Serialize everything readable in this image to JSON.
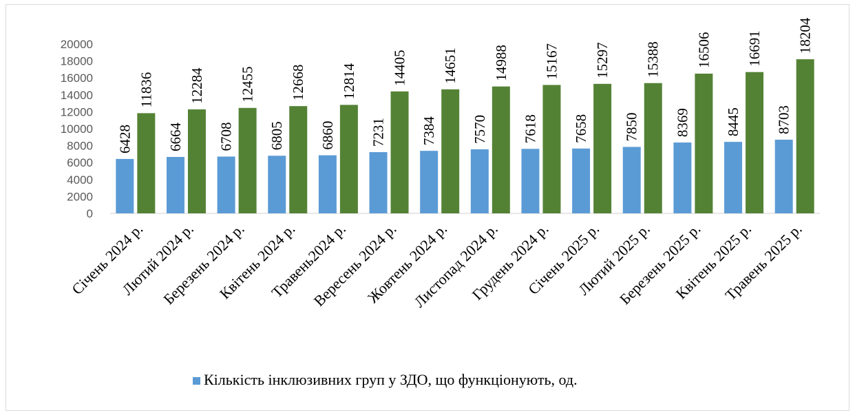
{
  "chart_data": {
    "type": "bar",
    "title": "",
    "xlabel": "",
    "ylabel": "",
    "ylim": [
      0,
      20000
    ],
    "yticks": [
      0,
      2000,
      4000,
      6000,
      8000,
      10000,
      12000,
      14000,
      16000,
      18000,
      20000
    ],
    "grid": false,
    "legend_position": "bottom",
    "categories": [
      "Січень 2024 р.",
      "Лютий 2024 р.",
      "Березень 2024 р.",
      "Квітень 2024 р.",
      "Травень2024 р.",
      "Вересень 2024 р.",
      "Жовтень 2024 р.",
      "Листопад 2024 р.",
      "Грудень 2024 р.",
      "Січень 2025 р.",
      "Лютий 2025 р.",
      "Березень 2025 р.",
      "Квітень 2025 р.",
      "Травень 2025 р."
    ],
    "series": [
      {
        "name": "Кількість інклюзивних груп у ЗДО, що  функціонують, од.",
        "color": "#5b9bd5",
        "values": [
          6428,
          6664,
          6708,
          6805,
          6860,
          7231,
          7384,
          7570,
          7618,
          7658,
          7850,
          8369,
          8445,
          8703
        ]
      },
      {
        "name": "",
        "color": "#548235",
        "values": [
          11836,
          12284,
          12455,
          12668,
          12814,
          14405,
          14651,
          14988,
          15167,
          15297,
          15388,
          16506,
          16691,
          18204
        ]
      }
    ]
  }
}
